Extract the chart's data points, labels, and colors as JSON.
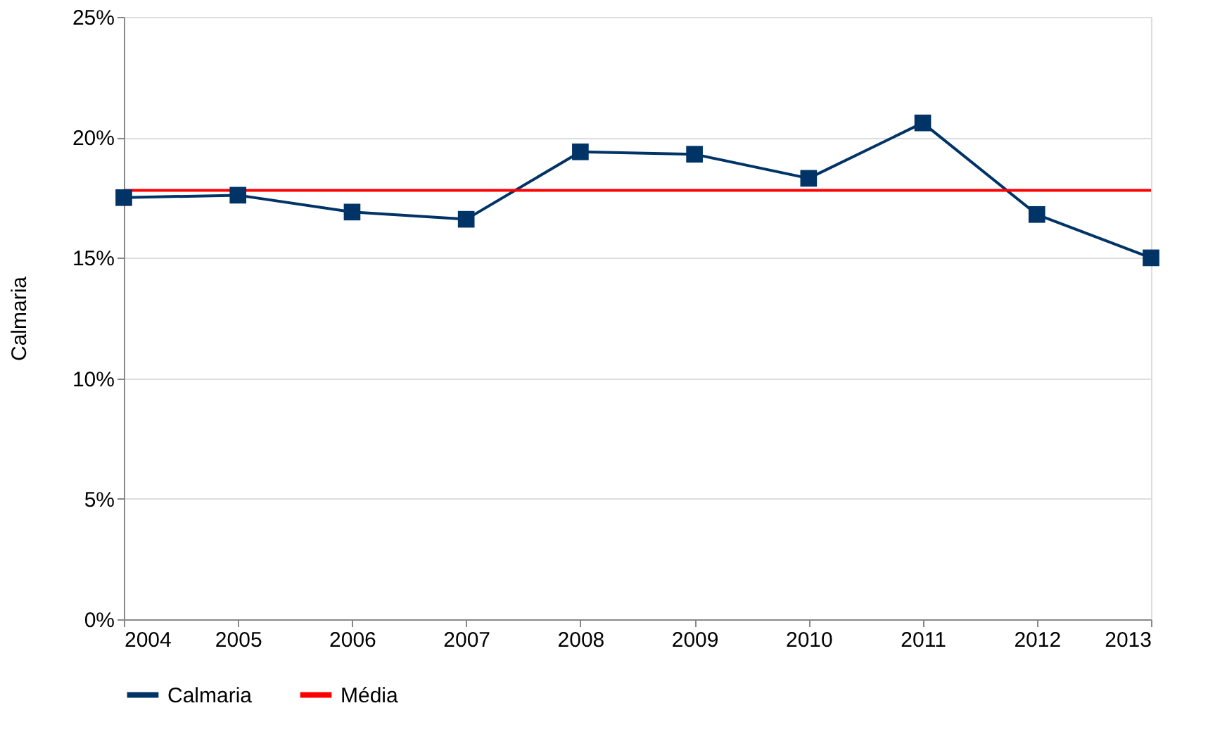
{
  "chart_data": {
    "type": "line",
    "ylabel": "Calmaria",
    "x": [
      2004,
      2005,
      2006,
      2007,
      2008,
      2009,
      2010,
      2011,
      2012,
      2013
    ],
    "series": [
      {
        "name": "Calmaria",
        "color": "#003366",
        "marker": "square",
        "values": [
          17.5,
          17.6,
          16.9,
          16.6,
          19.4,
          19.3,
          18.3,
          20.6,
          16.8,
          15.0
        ]
      },
      {
        "name": "Média",
        "color": "#ff0000",
        "marker": "none",
        "values": [
          17.8,
          17.8,
          17.8,
          17.8,
          17.8,
          17.8,
          17.8,
          17.8,
          17.8,
          17.8
        ]
      }
    ],
    "xlim": [
      2004,
      2013
    ],
    "xticks": [
      2004,
      2005,
      2006,
      2007,
      2008,
      2009,
      2010,
      2011,
      2012,
      2013
    ],
    "ylim": [
      0,
      25
    ],
    "yticks": [
      {
        "value": 0,
        "label": "0%"
      },
      {
        "value": 5,
        "label": "5%"
      },
      {
        "value": 10,
        "label": "10%"
      },
      {
        "value": 15,
        "label": "15%"
      },
      {
        "value": 20,
        "label": "20%"
      },
      {
        "value": 25,
        "label": "25%"
      }
    ],
    "grid": "y",
    "legend": "bottom",
    "line_style": "solid"
  }
}
